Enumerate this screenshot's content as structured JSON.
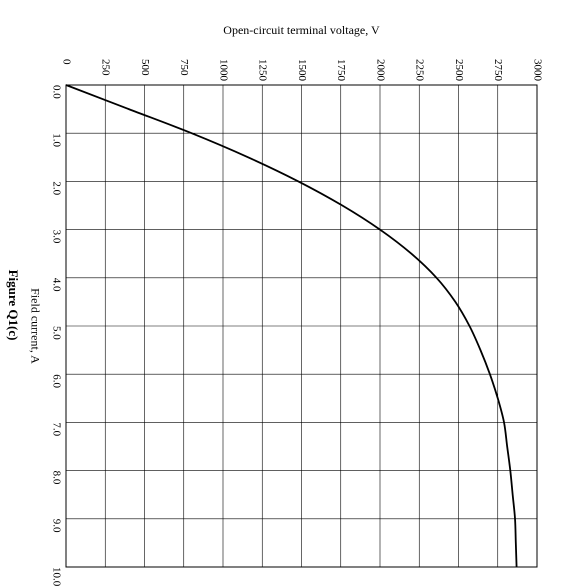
{
  "chart_data": {
    "type": "line",
    "orientation": "rotated",
    "xlabel": "Field current, A",
    "ylabel": "Open-circuit terminal voltage, V",
    "caption": "Figure Q1(c)",
    "xlim": [
      0,
      10
    ],
    "ylim": [
      0,
      3000
    ],
    "x_ticks": [
      "0.0",
      "1.0",
      "2.0",
      "3.0",
      "4.0",
      "5.0",
      "6.0",
      "7.0",
      "8.0",
      "9.0",
      "10.0"
    ],
    "y_ticks": [
      "0",
      "250",
      "500",
      "750",
      "1000",
      "1250",
      "1500",
      "1750",
      "2000",
      "2250",
      "2500",
      "2750",
      "3000"
    ],
    "grid": true,
    "series": [
      {
        "x": [
          0.0,
          0.5,
          1.0,
          1.5,
          2.0,
          2.5,
          3.0,
          3.5,
          4.0,
          4.5,
          5.0,
          5.5,
          6.0,
          6.5,
          7.0,
          7.5,
          8.0,
          8.5,
          9.0,
          9.5,
          10.0
        ],
        "y": [
          0,
          400,
          800,
          1160,
          1480,
          1760,
          2000,
          2200,
          2360,
          2480,
          2570,
          2640,
          2700,
          2750,
          2790,
          2810,
          2830,
          2845,
          2860,
          2865,
          2870
        ]
      }
    ]
  }
}
